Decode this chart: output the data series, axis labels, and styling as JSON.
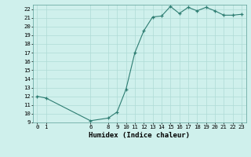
{
  "x": [
    0,
    1,
    6,
    8,
    9,
    10,
    11,
    12,
    13,
    14,
    15,
    16,
    17,
    18,
    19,
    20,
    21,
    22,
    23
  ],
  "y": [
    12.0,
    11.8,
    9.2,
    9.5,
    10.2,
    12.8,
    17.0,
    19.5,
    21.1,
    21.2,
    22.3,
    21.5,
    22.2,
    21.8,
    22.2,
    21.8,
    21.3,
    21.3,
    21.4
  ],
  "xlabel": "Humidex (Indice chaleur)",
  "ylim": [
    9,
    22.5
  ],
  "xlim": [
    -0.5,
    23.5
  ],
  "yticks": [
    9,
    10,
    11,
    12,
    13,
    14,
    15,
    16,
    17,
    18,
    19,
    20,
    21,
    22
  ],
  "xticks": [
    0,
    1,
    6,
    8,
    9,
    10,
    11,
    12,
    13,
    14,
    15,
    16,
    17,
    18,
    19,
    20,
    21,
    22,
    23
  ],
  "line_color": "#2e7d72",
  "marker_color": "#2e7d72",
  "bg_color": "#cff0ec",
  "grid_color": "#aedbd6",
  "tick_label_fontsize": 5.2,
  "xlabel_fontsize": 6.5
}
